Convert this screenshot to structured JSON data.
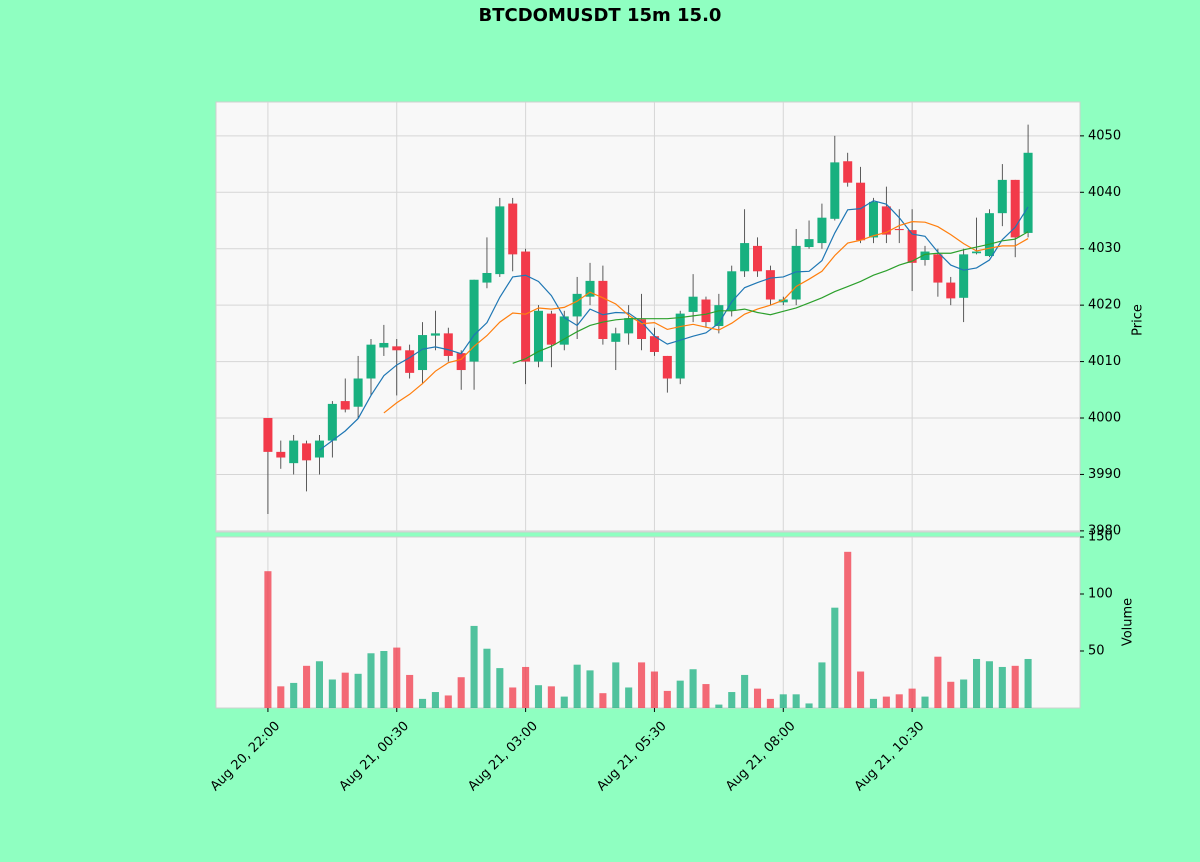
{
  "chart_data": {
    "type": "candlestick",
    "title": "BTCDOMUSDT 15m 15.0",
    "ylabel": "Price",
    "ylim": [
      3979.8,
      4056
    ],
    "yticks": [
      3980,
      3990,
      4000,
      4010,
      4020,
      4030,
      4040,
      4050
    ],
    "grid": true,
    "up_color": "#18b07f",
    "down_color": "#f23a4a",
    "categories": [
      "Aug 20, 22:00",
      null,
      null,
      null,
      null,
      null,
      null,
      null,
      null,
      null,
      "Aug 21, 00:30",
      null,
      null,
      null,
      null,
      null,
      null,
      null,
      null,
      null,
      "Aug 21, 03:00",
      null,
      null,
      null,
      null,
      null,
      null,
      null,
      null,
      null,
      "Aug 21, 05:30",
      null,
      null,
      null,
      null,
      null,
      null,
      null,
      null,
      null,
      "Aug 21, 08:00",
      null,
      null,
      null,
      null,
      null,
      null,
      null,
      null,
      null,
      "Aug 21, 10:30",
      null,
      null,
      null,
      null,
      null,
      null,
      null,
      null,
      null
    ],
    "open": [
      4000,
      3994,
      3992,
      3995.5,
      3993,
      3996,
      4003,
      4002,
      4007,
      4012.5,
      4012.7,
      4012,
      4008.5,
      4014.6,
      4015,
      4011.5,
      4010,
      4024,
      4025.5,
      4038,
      4029.5,
      4010,
      4018.5,
      4013,
      4018,
      4021.5,
      4024.3,
      4013.5,
      4015,
      4017.5,
      4014.5,
      4011,
      4007,
      4018.8,
      4021,
      4016.3,
      4019,
      4026,
      4030.5,
      4026.2,
      4020.5,
      4021,
      4030.3,
      4031,
      4035.3,
      4045.5,
      4041.7,
      4032,
      4037.5,
      4033.5,
      4033.3,
      4028,
      4029,
      4024,
      4021.3,
      4029.2,
      4028.7,
      4036.3,
      4042.2,
      4032.8
    ],
    "high": [
      4000,
      3996,
      3997,
      3996,
      3997,
      4003,
      4007,
      4011,
      4014,
      4016.5,
      4014,
      4013,
      4017,
      4019,
      4016,
      4012,
      4024.5,
      4032,
      4039,
      4039,
      4030,
      4020,
      4019,
      4019,
      4025,
      4027.5,
      4027,
      4016,
      4020,
      4022,
      4016,
      4011,
      4019,
      4025.5,
      4021.5,
      4022,
      4027,
      4037,
      4032,
      4027,
      4021.5,
      4033.5,
      4035,
      4038,
      4050,
      4047,
      4044.5,
      4039,
      4041,
      4037,
      4037,
      4030.5,
      4030,
      4025,
      4030,
      4035.5,
      4037,
      4045,
      4042.2,
      4052
    ],
    "low": [
      3983,
      3991,
      3990,
      3987,
      3990,
      3993,
      4001,
      4000,
      4004,
      4011,
      4004,
      4007,
      4006,
      4012,
      4010,
      4005,
      4005,
      4023,
      4025,
      4026,
      4006,
      4009,
      4009,
      4012,
      4014,
      4020,
      4013,
      4008.5,
      4013,
      4012,
      4011,
      4004.5,
      4006,
      4017,
      4016,
      4015,
      4018,
      4025,
      4025,
      4020,
      4020,
      4020,
      4030,
      4030,
      4035,
      4041,
      4031,
      4031,
      4031,
      4031,
      4022.5,
      4027,
      4021.5,
      4020,
      4017,
      4029,
      4028.5,
      4034,
      4028.5,
      4032
    ],
    "close": [
      3994,
      3993,
      3996,
      3992.5,
      3996,
      4002.5,
      4001.5,
      4007,
      4013,
      4013.3,
      4012,
      4008,
      4014.7,
      4015,
      4011,
      4008.5,
      4024.5,
      4025.7,
      4037.5,
      4029,
      4010,
      4019,
      4013,
      4018,
      4022,
      4024.3,
      4014,
      4015,
      4017.7,
      4014,
      4011.7,
      4007,
      4018.5,
      4021.5,
      4017,
      4020,
      4026,
      4031,
      4026,
      4021,
      4021,
      4030.5,
      4031.7,
      4035.5,
      4045.3,
      4041.7,
      4031.5,
      4038.3,
      4032.5,
      4033.3,
      4027.5,
      4029.5,
      4024,
      4021.2,
      4029,
      4029.5,
      4036.3,
      4042.2,
      4032,
      4047
    ],
    "moving_averages": [
      {
        "color": "#1f77b4",
        "values": [
          null,
          null,
          null,
          null,
          3994.3,
          3996.0,
          3997.7,
          3999.9,
          4004.0,
          4007.5,
          4009.4,
          4010.7,
          4012.2,
          4012.6,
          4012.1,
          4011.4,
          4014.7,
          4016.9,
          4021.4,
          4025.0,
          4025.3,
          4024.2,
          4021.7,
          4017.8,
          4016.4,
          4019.3,
          4018.3,
          4018.7,
          4018.6,
          4017.0,
          4014.5,
          4013.1,
          4013.8,
          4014.5,
          4015.1,
          4016.8,
          4020.6,
          4023.1,
          4024.0,
          4024.8,
          4025.0,
          4025.9,
          4026.0,
          4027.9,
          4032.8,
          4036.9,
          4037.1,
          4038.5,
          4037.9,
          4035.5,
          4032.6,
          4032.2,
          4029.4,
          4027.1,
          4026.2,
          4026.6,
          4028.0,
          4031.6,
          4033.8,
          4037.4
        ]
      },
      {
        "color": "#ff7f0e",
        "values": [
          null,
          null,
          null,
          null,
          null,
          null,
          null,
          null,
          null,
          4000.9,
          4002.7,
          4004.2,
          4006.1,
          4008.3,
          4009.8,
          4010.4,
          4012.7,
          4014.6,
          4017.0,
          4018.6,
          4018.4,
          4019.5,
          4019.3,
          4019.6,
          4020.7,
          4022.3,
          4021.3,
          4020.2,
          4018.2,
          4016.7,
          4016.9,
          4015.7,
          4016.2,
          4016.6,
          4016.1,
          4015.6,
          4016.8,
          4018.4,
          4019.3,
          4020.0,
          4020.9,
          4023.3,
          4024.6,
          4026.0,
          4028.8,
          4031.0,
          4031.5,
          4032.3,
          4032.9,
          4034.1,
          4034.8,
          4034.7,
          4033.9,
          4032.5,
          4030.9,
          4029.6,
          4030.1,
          4030.5,
          4030.5,
          4031.8
        ]
      },
      {
        "color": "#2ca02c",
        "values": [
          null,
          null,
          null,
          null,
          null,
          null,
          null,
          null,
          null,
          null,
          null,
          null,
          null,
          null,
          null,
          null,
          null,
          null,
          null,
          4009.7,
          4010.5,
          4011.8,
          4012.7,
          4014.0,
          4015.3,
          4016.4,
          4017.0,
          4017.4,
          4017.6,
          4017.6,
          4017.6,
          4017.6,
          4017.8,
          4018.1,
          4018.4,
          4019.0,
          4019.0,
          4019.3,
          4018.7,
          4018.3,
          4018.9,
          4019.5,
          4020.4,
          4021.3,
          4022.4,
          4023.3,
          4024.2,
          4025.3,
          4026.1,
          4027.1,
          4027.8,
          4029.0,
          4029.2,
          4029.2,
          4029.8,
          4030.3,
          4030.8,
          4031.4,
          4031.7,
          4033.0
        ]
      }
    ],
    "volume": {
      "ylabel": "Volume",
      "ylim": [
        0,
        150
      ],
      "yticks": [
        50,
        100,
        150
      ],
      "values": [
        120,
        19,
        22,
        37,
        41,
        25,
        31,
        30,
        48,
        50,
        53,
        29,
        8,
        14,
        11,
        27,
        72,
        52,
        35,
        18,
        36,
        20,
        19,
        10,
        38,
        33,
        13,
        40,
        18,
        40,
        32,
        15,
        24,
        34,
        21,
        3,
        14,
        29,
        17,
        8,
        12,
        12,
        4,
        40,
        88,
        137,
        32,
        8,
        10,
        12,
        17,
        10,
        45,
        23,
        25,
        43,
        41,
        36,
        37,
        43
      ]
    }
  }
}
